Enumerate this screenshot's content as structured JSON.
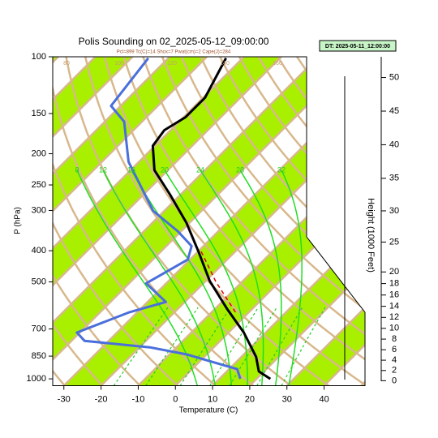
{
  "chart_data": {
    "type": "skewt",
    "title": "Polis Sounding on 02_2025-05-12_09:00:00",
    "subtitle": "Pcl=899 Tc(C)=14 Shox=7 Pwat(cm)=2 Cape(J)=284",
    "info_box": "DT: 2025-05-11_12:00:00",
    "xlabel": "Temperature (C)",
    "ylabel": "P (hPa)",
    "y2label": "Height (1000 Feet)",
    "xlim": [
      -33,
      51
    ],
    "xticks": [
      -30,
      -20,
      -10,
      0,
      10,
      20,
      30,
      40
    ],
    "ylim": [
      1050,
      100
    ],
    "yticks": [
      100,
      150,
      200,
      250,
      300,
      400,
      500,
      700,
      850,
      1000
    ],
    "log_y": true,
    "y2ticks": [
      0,
      2,
      4,
      6,
      8,
      10,
      12,
      14,
      16,
      18,
      20,
      25,
      30,
      35,
      40,
      45,
      50
    ],
    "moist_adiabat_labels": [
      8,
      12,
      16,
      20,
      24,
      28,
      32
    ],
    "dry_adiabat_labels": [
      80,
      100,
      120,
      140,
      160
    ],
    "series": [
      {
        "color": "#000000",
        "dashed": false,
        "pressure": [
          1000,
          948,
          855,
          718,
          606,
          497,
          403,
          328,
          268,
          225,
          189,
          169,
          154,
          134,
          101
        ],
        "values": [
          23.7,
          18.6,
          14.0,
          4.1,
          -6.8,
          -18.9,
          -29.8,
          -40.8,
          -52.8,
          -63.6,
          -70.6,
          -71.7,
          -69.5,
          -69.5,
          -74.5
        ]
      },
      {
        "color": "#4a6fdc",
        "dashed": false,
        "pressure": [
          1000,
          933,
          840,
          798,
          762,
          718,
          621,
          577,
          505,
          426,
          387,
          348,
          301,
          212,
          159,
          142,
          101
        ],
        "values": [
          15.6,
          12.2,
          -5.3,
          -17.2,
          -36.5,
          -40.8,
          -32.1,
          -25.1,
          -35.4,
          -30.6,
          -33.2,
          -40.9,
          -53.0,
          -72.8,
          -84.8,
          -92.6,
          -95.4
        ]
      },
      {
        "color": "#dd0000",
        "dashed": true,
        "pressure": [
          621,
          500,
          397
        ],
        "values": [
          -3.6,
          -17.0,
          -29.9
        ]
      }
    ]
  }
}
